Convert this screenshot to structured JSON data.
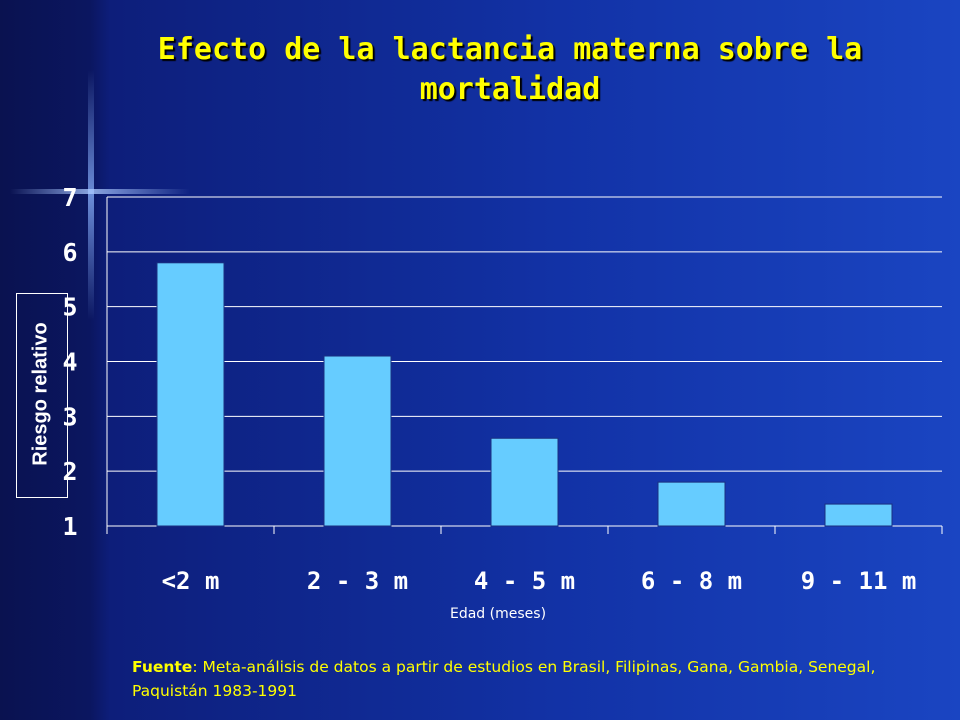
{
  "title": "Efecto de la lactancia materna sobre la mortalidad",
  "chart_data": {
    "type": "bar",
    "categories": [
      "<2 m",
      "2 - 3 m",
      "4 - 5 m",
      "6 - 8 m",
      "9 - 11 m"
    ],
    "values": [
      5.8,
      4.1,
      2.6,
      1.8,
      1.4
    ],
    "ylabel": "Riesgo relativo",
    "xlabel": "Edad (meses)",
    "ylim": [
      1,
      7
    ],
    "yticks": [
      1,
      2,
      3,
      4,
      5,
      6,
      7
    ],
    "grid": true,
    "legend": "none",
    "colors": {
      "bar_fill": "#66ccff",
      "bar_stroke": "#1a2f80",
      "gridline": "#ffffff",
      "axis_text": "#ffffff"
    }
  },
  "source": {
    "label": "Fuente",
    "text": ": Meta-análisis de datos a partir de estudios en Brasil, Filipinas, Gana, Gambia, Senegal, Paquistán 1983-1991"
  },
  "colors": {
    "title": "#ffff00",
    "source": "#ffff00"
  }
}
